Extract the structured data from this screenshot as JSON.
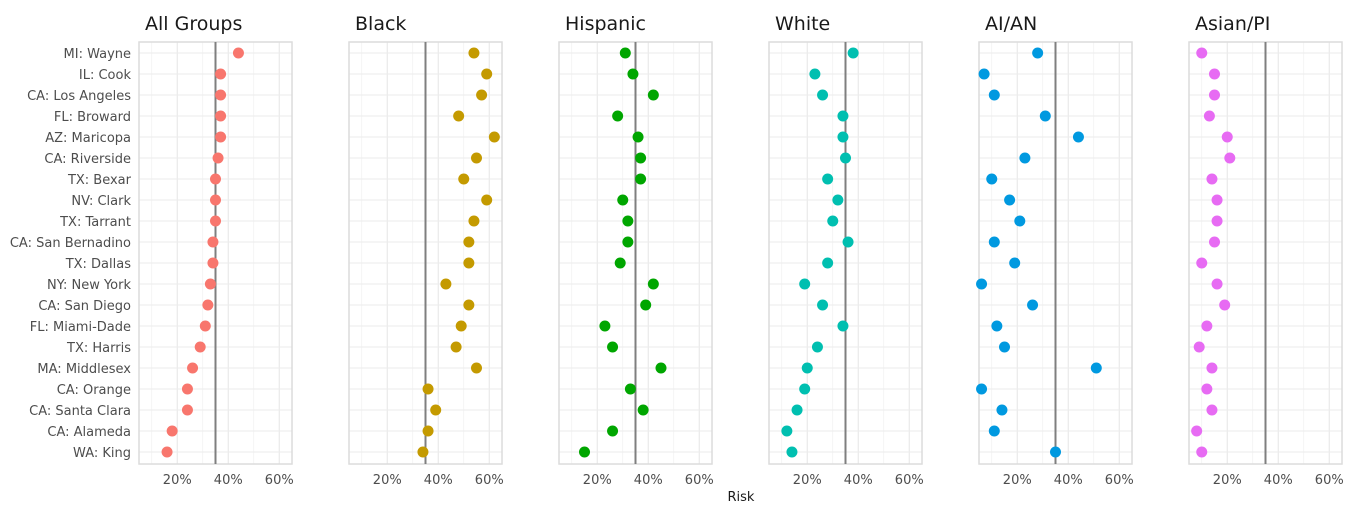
{
  "chart_data": {
    "type": "scatter",
    "xlabel": "Risk",
    "ylabel": "",
    "xlim": [
      0.05,
      0.65
    ],
    "x_ticks": [
      0.2,
      0.4,
      0.6
    ],
    "x_tick_labels": [
      "20%",
      "40%",
      "60%"
    ],
    "grid": true,
    "legend": "none",
    "categories": [
      "MI: Wayne",
      "IL: Cook",
      "CA: Los Angeles",
      "FL: Broward",
      "AZ: Maricopa",
      "CA: Riverside",
      "TX: Bexar",
      "NV: Clark",
      "TX: Tarrant",
      "CA: San Bernadino",
      "TX: Dallas",
      "NY: New York",
      "CA: San Diego",
      "FL: Miami-Dade",
      "TX: Harris",
      "MA: Middlesex",
      "CA: Orange",
      "CA: Santa Clara",
      "CA: Alameda",
      "WA: King"
    ],
    "panels": [
      {
        "title": "All Groups",
        "color": "#F8766D",
        "reference": 0.35,
        "values": [
          0.44,
          0.37,
          0.37,
          0.37,
          0.37,
          0.36,
          0.35,
          0.35,
          0.35,
          0.34,
          0.34,
          0.33,
          0.32,
          0.31,
          0.29,
          0.26,
          0.24,
          0.24,
          0.18,
          0.16
        ]
      },
      {
        "title": "Black",
        "color": "#C49A00",
        "reference": 0.35,
        "values": [
          0.54,
          0.59,
          0.57,
          0.48,
          0.62,
          0.55,
          0.5,
          0.59,
          0.54,
          0.52,
          0.52,
          0.43,
          0.52,
          0.49,
          0.47,
          0.55,
          0.36,
          0.39,
          0.36,
          0.34
        ]
      },
      {
        "title": "Hispanic",
        "color": "#00A600",
        "reference": 0.35,
        "values": [
          0.31,
          0.34,
          0.42,
          0.28,
          0.36,
          0.37,
          0.37,
          0.3,
          0.32,
          0.32,
          0.29,
          0.42,
          0.39,
          0.23,
          0.26,
          0.45,
          0.33,
          0.38,
          0.26,
          0.15
        ]
      },
      {
        "title": "White",
        "color": "#00BFB0",
        "reference": 0.35,
        "values": [
          0.38,
          0.23,
          0.26,
          0.34,
          0.34,
          0.35,
          0.28,
          0.32,
          0.3,
          0.36,
          0.28,
          0.19,
          0.26,
          0.34,
          0.24,
          0.2,
          0.19,
          0.16,
          0.12,
          0.14
        ]
      },
      {
        "title": "AI/AN",
        "color": "#0099E0",
        "reference": 0.35,
        "values": [
          0.28,
          0.07,
          0.11,
          0.31,
          0.44,
          0.23,
          0.1,
          0.17,
          0.21,
          0.11,
          0.19,
          0.06,
          0.26,
          0.12,
          0.15,
          0.51,
          0.06,
          0.14,
          0.11,
          0.35
        ]
      },
      {
        "title": "Asian/PI",
        "color": "#E76BF3",
        "reference": 0.35,
        "values": [
          0.1,
          0.15,
          0.15,
          0.13,
          0.2,
          0.21,
          0.14,
          0.16,
          0.16,
          0.15,
          0.1,
          0.16,
          0.19,
          0.12,
          0.09,
          0.14,
          0.12,
          0.14,
          0.08,
          0.1
        ]
      }
    ]
  }
}
